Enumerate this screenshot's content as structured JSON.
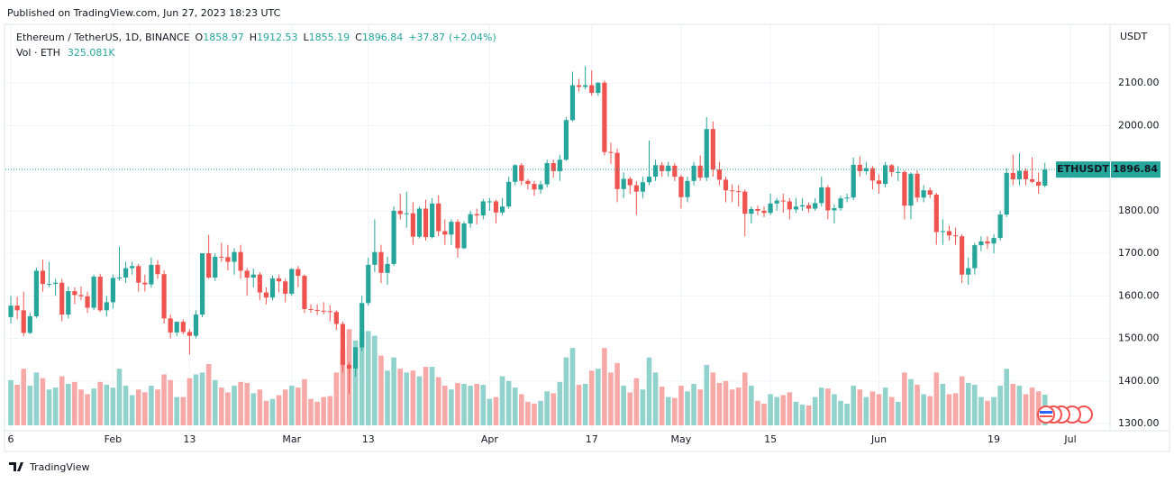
{
  "published": "Published on TradingView.com, Jun 27, 2023 18:23 UTC",
  "footer": "TradingView",
  "chart_data": {
    "type": "candlestick",
    "legend": {
      "symbol": "Ethereum / TetherUS, 1D, BINANCE",
      "ohlc_labels": [
        "O",
        "H",
        "L",
        "C"
      ],
      "ohlc": [
        1858.97,
        1912.53,
        1855.19,
        1896.84
      ],
      "change": "+37.87",
      "change_pct": "(+2.04%)",
      "volume_label": "Vol · ETH",
      "volume": "325.081K"
    },
    "axis_unit": "USDT",
    "last_price_tag": "ETHUSDT",
    "last_price": {
      "value": 1896.84,
      "label": "1896.84"
    },
    "up_color": "#26a69a",
    "down_color": "#ef5350",
    "up_volume_color": "#92d2cc",
    "down_volume_color": "#f7a9a7",
    "grid": true,
    "xlim": [
      -1.7,
      172.2
    ],
    "ylim": [
      1283,
      2236
    ],
    "volume_lim": [
      0,
      4300
    ],
    "yticks": [
      {
        "value": 1300,
        "label": "1300.00"
      },
      {
        "value": 1400,
        "label": "1400.00"
      },
      {
        "value": 1500,
        "label": "1500.00"
      },
      {
        "value": 1600,
        "label": "1600.00"
      },
      {
        "value": 1700,
        "label": "1700.00"
      },
      {
        "value": 1800,
        "label": "1800.00"
      },
      {
        "value": 1900,
        "label": "1900.00"
      },
      {
        "value": 2000,
        "label": "2000.00"
      },
      {
        "value": 2100,
        "label": "2100.00"
      }
    ],
    "xticks": [
      {
        "value": 0,
        "label": "6"
      },
      {
        "value": 16,
        "label": "Feb"
      },
      {
        "value": 28,
        "label": "13"
      },
      {
        "value": 44,
        "label": "Mar"
      },
      {
        "value": 56,
        "label": "13"
      },
      {
        "value": 75,
        "label": "Apr"
      },
      {
        "value": 91,
        "label": "17"
      },
      {
        "value": 105,
        "label": "May"
      },
      {
        "value": 119,
        "label": "15"
      },
      {
        "value": 136,
        "label": "Jun"
      },
      {
        "value": 154,
        "label": "19"
      },
      {
        "value": 166,
        "label": "Jul"
      }
    ],
    "candles": [
      [
        1550,
        1600,
        1535,
        1577,
        480
      ],
      [
        1577,
        1598,
        1545,
        1566,
        430
      ],
      [
        1566,
        1610,
        1505,
        1513,
        600
      ],
      [
        1513,
        1560,
        1510,
        1552,
        420
      ],
      [
        1552,
        1666,
        1548,
        1659,
        560
      ],
      [
        1659,
        1685,
        1610,
        1628,
        500
      ],
      [
        1628,
        1680,
        1620,
        1628,
        380
      ],
      [
        1628,
        1640,
        1600,
        1631,
        400
      ],
      [
        1631,
        1640,
        1540,
        1556,
        520
      ],
      [
        1556,
        1622,
        1547,
        1611,
        440
      ],
      [
        1611,
        1620,
        1580,
        1602,
        460
      ],
      [
        1602,
        1622,
        1590,
        1599,
        380
      ],
      [
        1599,
        1610,
        1560,
        1572,
        330
      ],
      [
        1572,
        1650,
        1567,
        1645,
        390
      ],
      [
        1645,
        1652,
        1562,
        1566,
        460
      ],
      [
        1566,
        1600,
        1552,
        1585,
        430
      ],
      [
        1585,
        1650,
        1570,
        1642,
        400
      ],
      [
        1642,
        1716,
        1636,
        1643,
        600
      ],
      [
        1643,
        1680,
        1630,
        1665,
        420
      ],
      [
        1665,
        1680,
        1650,
        1670,
        320
      ],
      [
        1670,
        1675,
        1610,
        1631,
        380
      ],
      [
        1631,
        1650,
        1610,
        1627,
        350
      ],
      [
        1627,
        1690,
        1620,
        1673,
        420
      ],
      [
        1673,
        1684,
        1640,
        1651,
        380
      ],
      [
        1651,
        1660,
        1535,
        1547,
        540
      ],
      [
        1547,
        1556,
        1500,
        1514,
        480
      ],
      [
        1514,
        1540,
        1505,
        1539,
        300
      ],
      [
        1539,
        1545,
        1510,
        1515,
        300
      ],
      [
        1515,
        1522,
        1462,
        1506,
        500
      ],
      [
        1506,
        1566,
        1500,
        1556,
        540
      ],
      [
        1556,
        1700,
        1550,
        1700,
        560
      ],
      [
        1700,
        1743,
        1640,
        1643,
        650
      ],
      [
        1643,
        1700,
        1635,
        1692,
        480
      ],
      [
        1692,
        1725,
        1680,
        1691,
        400
      ],
      [
        1691,
        1720,
        1660,
        1680,
        350
      ],
      [
        1680,
        1712,
        1650,
        1703,
        420
      ],
      [
        1703,
        1720,
        1640,
        1659,
        460
      ],
      [
        1659,
        1665,
        1600,
        1643,
        450
      ],
      [
        1643,
        1664,
        1620,
        1650,
        340
      ],
      [
        1650,
        1656,
        1590,
        1608,
        380
      ],
      [
        1608,
        1620,
        1580,
        1596,
        260
      ],
      [
        1596,
        1648,
        1590,
        1641,
        280
      ],
      [
        1641,
        1650,
        1608,
        1634,
        320
      ],
      [
        1634,
        1640,
        1585,
        1605,
        380
      ],
      [
        1605,
        1665,
        1600,
        1663,
        420
      ],
      [
        1663,
        1670,
        1620,
        1647,
        400
      ],
      [
        1647,
        1650,
        1560,
        1569,
        490
      ],
      [
        1569,
        1580,
        1560,
        1567,
        280
      ],
      [
        1567,
        1580,
        1555,
        1565,
        250
      ],
      [
        1565,
        1585,
        1557,
        1564,
        300
      ],
      [
        1564,
        1578,
        1540,
        1562,
        310
      ],
      [
        1562,
        1566,
        1520,
        1534,
        560
      ],
      [
        1534,
        1540,
        1420,
        1438,
        800
      ],
      [
        1438,
        1444,
        1370,
        1429,
        1020
      ],
      [
        1429,
        1480,
        1410,
        1479,
        900
      ],
      [
        1479,
        1600,
        1470,
        1583,
        1000
      ],
      [
        1583,
        1690,
        1577,
        1673,
        1000
      ],
      [
        1673,
        1780,
        1656,
        1703,
        950
      ],
      [
        1703,
        1720,
        1630,
        1654,
        740
      ],
      [
        1654,
        1692,
        1626,
        1675,
        580
      ],
      [
        1675,
        1810,
        1670,
        1800,
        720
      ],
      [
        1800,
        1840,
        1780,
        1792,
        600
      ],
      [
        1792,
        1845,
        1760,
        1794,
        560
      ],
      [
        1794,
        1820,
        1720,
        1739,
        580
      ],
      [
        1739,
        1810,
        1735,
        1805,
        520
      ],
      [
        1805,
        1826,
        1730,
        1738,
        620
      ],
      [
        1738,
        1830,
        1735,
        1817,
        620
      ],
      [
        1817,
        1836,
        1740,
        1752,
        510
      ],
      [
        1752,
        1780,
        1720,
        1744,
        420
      ],
      [
        1744,
        1780,
        1720,
        1774,
        380
      ],
      [
        1774,
        1780,
        1690,
        1712,
        450
      ],
      [
        1712,
        1775,
        1710,
        1770,
        440
      ],
      [
        1770,
        1800,
        1760,
        1792,
        420
      ],
      [
        1792,
        1805,
        1768,
        1789,
        440
      ],
      [
        1789,
        1828,
        1780,
        1822,
        430
      ],
      [
        1822,
        1830,
        1800,
        1822,
        280
      ],
      [
        1822,
        1826,
        1770,
        1796,
        300
      ],
      [
        1796,
        1830,
        1790,
        1810,
        520
      ],
      [
        1810,
        1880,
        1805,
        1868,
        470
      ],
      [
        1868,
        1910,
        1860,
        1907,
        400
      ],
      [
        1907,
        1912,
        1860,
        1870,
        330
      ],
      [
        1870,
        1875,
        1850,
        1863,
        250
      ],
      [
        1863,
        1870,
        1835,
        1850,
        230
      ],
      [
        1850,
        1870,
        1840,
        1862,
        260
      ],
      [
        1862,
        1920,
        1855,
        1912,
        360
      ],
      [
        1912,
        1920,
        1878,
        1893,
        340
      ],
      [
        1893,
        1932,
        1870,
        1920,
        460
      ],
      [
        1920,
        2020,
        1917,
        2013,
        720
      ],
      [
        2013,
        2127,
        2010,
        2095,
        820
      ],
      [
        2095,
        2110,
        2080,
        2091,
        430
      ],
      [
        2091,
        2140,
        2085,
        2095,
        440
      ],
      [
        2095,
        2130,
        2070,
        2077,
        580
      ],
      [
        2077,
        2102,
        2070,
        2101,
        600
      ],
      [
        2101,
        2106,
        1930,
        1938,
        820
      ],
      [
        1938,
        1960,
        1910,
        1936,
        560
      ],
      [
        1936,
        1946,
        1820,
        1851,
        660
      ],
      [
        1851,
        1890,
        1830,
        1875,
        420
      ],
      [
        1875,
        1880,
        1840,
        1860,
        350
      ],
      [
        1860,
        1870,
        1790,
        1845,
        500
      ],
      [
        1845,
        1880,
        1830,
        1867,
        380
      ],
      [
        1867,
        1965,
        1860,
        1880,
        720
      ],
      [
        1880,
        1920,
        1870,
        1907,
        560
      ],
      [
        1907,
        1915,
        1880,
        1893,
        410
      ],
      [
        1893,
        1915,
        1880,
        1906,
        300
      ],
      [
        1906,
        1912,
        1870,
        1880,
        290
      ],
      [
        1880,
        1885,
        1805,
        1832,
        420
      ],
      [
        1832,
        1880,
        1820,
        1870,
        360
      ],
      [
        1870,
        1915,
        1860,
        1906,
        440
      ],
      [
        1906,
        1930,
        1870,
        1878,
        380
      ],
      [
        1878,
        2020,
        1870,
        1992,
        640
      ],
      [
        1992,
        2010,
        1880,
        1897,
        560
      ],
      [
        1897,
        1915,
        1860,
        1873,
        450
      ],
      [
        1873,
        1880,
        1820,
        1848,
        470
      ],
      [
        1848,
        1862,
        1820,
        1846,
        380
      ],
      [
        1846,
        1860,
        1810,
        1845,
        400
      ],
      [
        1845,
        1850,
        1740,
        1793,
        560
      ],
      [
        1793,
        1810,
        1770,
        1804,
        420
      ],
      [
        1804,
        1812,
        1790,
        1800,
        260
      ],
      [
        1800,
        1810,
        1785,
        1795,
        230
      ],
      [
        1795,
        1840,
        1790,
        1817,
        330
      ],
      [
        1817,
        1830,
        1800,
        1824,
        300
      ],
      [
        1824,
        1840,
        1795,
        1822,
        320
      ],
      [
        1822,
        1830,
        1780,
        1803,
        350
      ],
      [
        1803,
        1830,
        1795,
        1810,
        250
      ],
      [
        1810,
        1830,
        1800,
        1813,
        220
      ],
      [
        1813,
        1820,
        1795,
        1805,
        210
      ],
      [
        1805,
        1830,
        1800,
        1818,
        300
      ],
      [
        1818,
        1880,
        1810,
        1855,
        400
      ],
      [
        1855,
        1860,
        1780,
        1801,
        390
      ],
      [
        1801,
        1815,
        1770,
        1806,
        330
      ],
      [
        1806,
        1835,
        1800,
        1829,
        260
      ],
      [
        1829,
        1840,
        1820,
        1831,
        230
      ],
      [
        1831,
        1925,
        1825,
        1908,
        420
      ],
      [
        1908,
        1928,
        1880,
        1893,
        380
      ],
      [
        1893,
        1915,
        1885,
        1900,
        300
      ],
      [
        1900,
        1905,
        1850,
        1871,
        360
      ],
      [
        1871,
        1885,
        1840,
        1863,
        330
      ],
      [
        1863,
        1915,
        1855,
        1907,
        400
      ],
      [
        1907,
        1910,
        1880,
        1891,
        300
      ],
      [
        1891,
        1905,
        1870,
        1891,
        250
      ],
      [
        1891,
        1895,
        1780,
        1812,
        560
      ],
      [
        1812,
        1890,
        1780,
        1887,
        490
      ],
      [
        1887,
        1895,
        1820,
        1831,
        430
      ],
      [
        1831,
        1860,
        1820,
        1848,
        330
      ],
      [
        1848,
        1855,
        1830,
        1838,
        310
      ],
      [
        1838,
        1842,
        1720,
        1750,
        560
      ],
      [
        1750,
        1780,
        1720,
        1752,
        440
      ],
      [
        1752,
        1765,
        1730,
        1742,
        330
      ],
      [
        1742,
        1760,
        1720,
        1740,
        340
      ],
      [
        1740,
        1745,
        1630,
        1650,
        520
      ],
      [
        1650,
        1690,
        1626,
        1665,
        450
      ],
      [
        1665,
        1724,
        1650,
        1719,
        430
      ],
      [
        1719,
        1740,
        1705,
        1728,
        300
      ],
      [
        1728,
        1740,
        1710,
        1723,
        260
      ],
      [
        1723,
        1745,
        1700,
        1736,
        300
      ],
      [
        1736,
        1800,
        1730,
        1791,
        420
      ],
      [
        1791,
        1900,
        1785,
        1889,
        600
      ],
      [
        1889,
        1932,
        1860,
        1874,
        440
      ],
      [
        1874,
        1935,
        1860,
        1894,
        420
      ],
      [
        1894,
        1900,
        1860,
        1874,
        330
      ],
      [
        1874,
        1925,
        1865,
        1868,
        400
      ],
      [
        1868,
        1890,
        1840,
        1859,
        360
      ],
      [
        1858.97,
        1912.53,
        1855.19,
        1896.84,
        325.081
      ]
    ]
  }
}
